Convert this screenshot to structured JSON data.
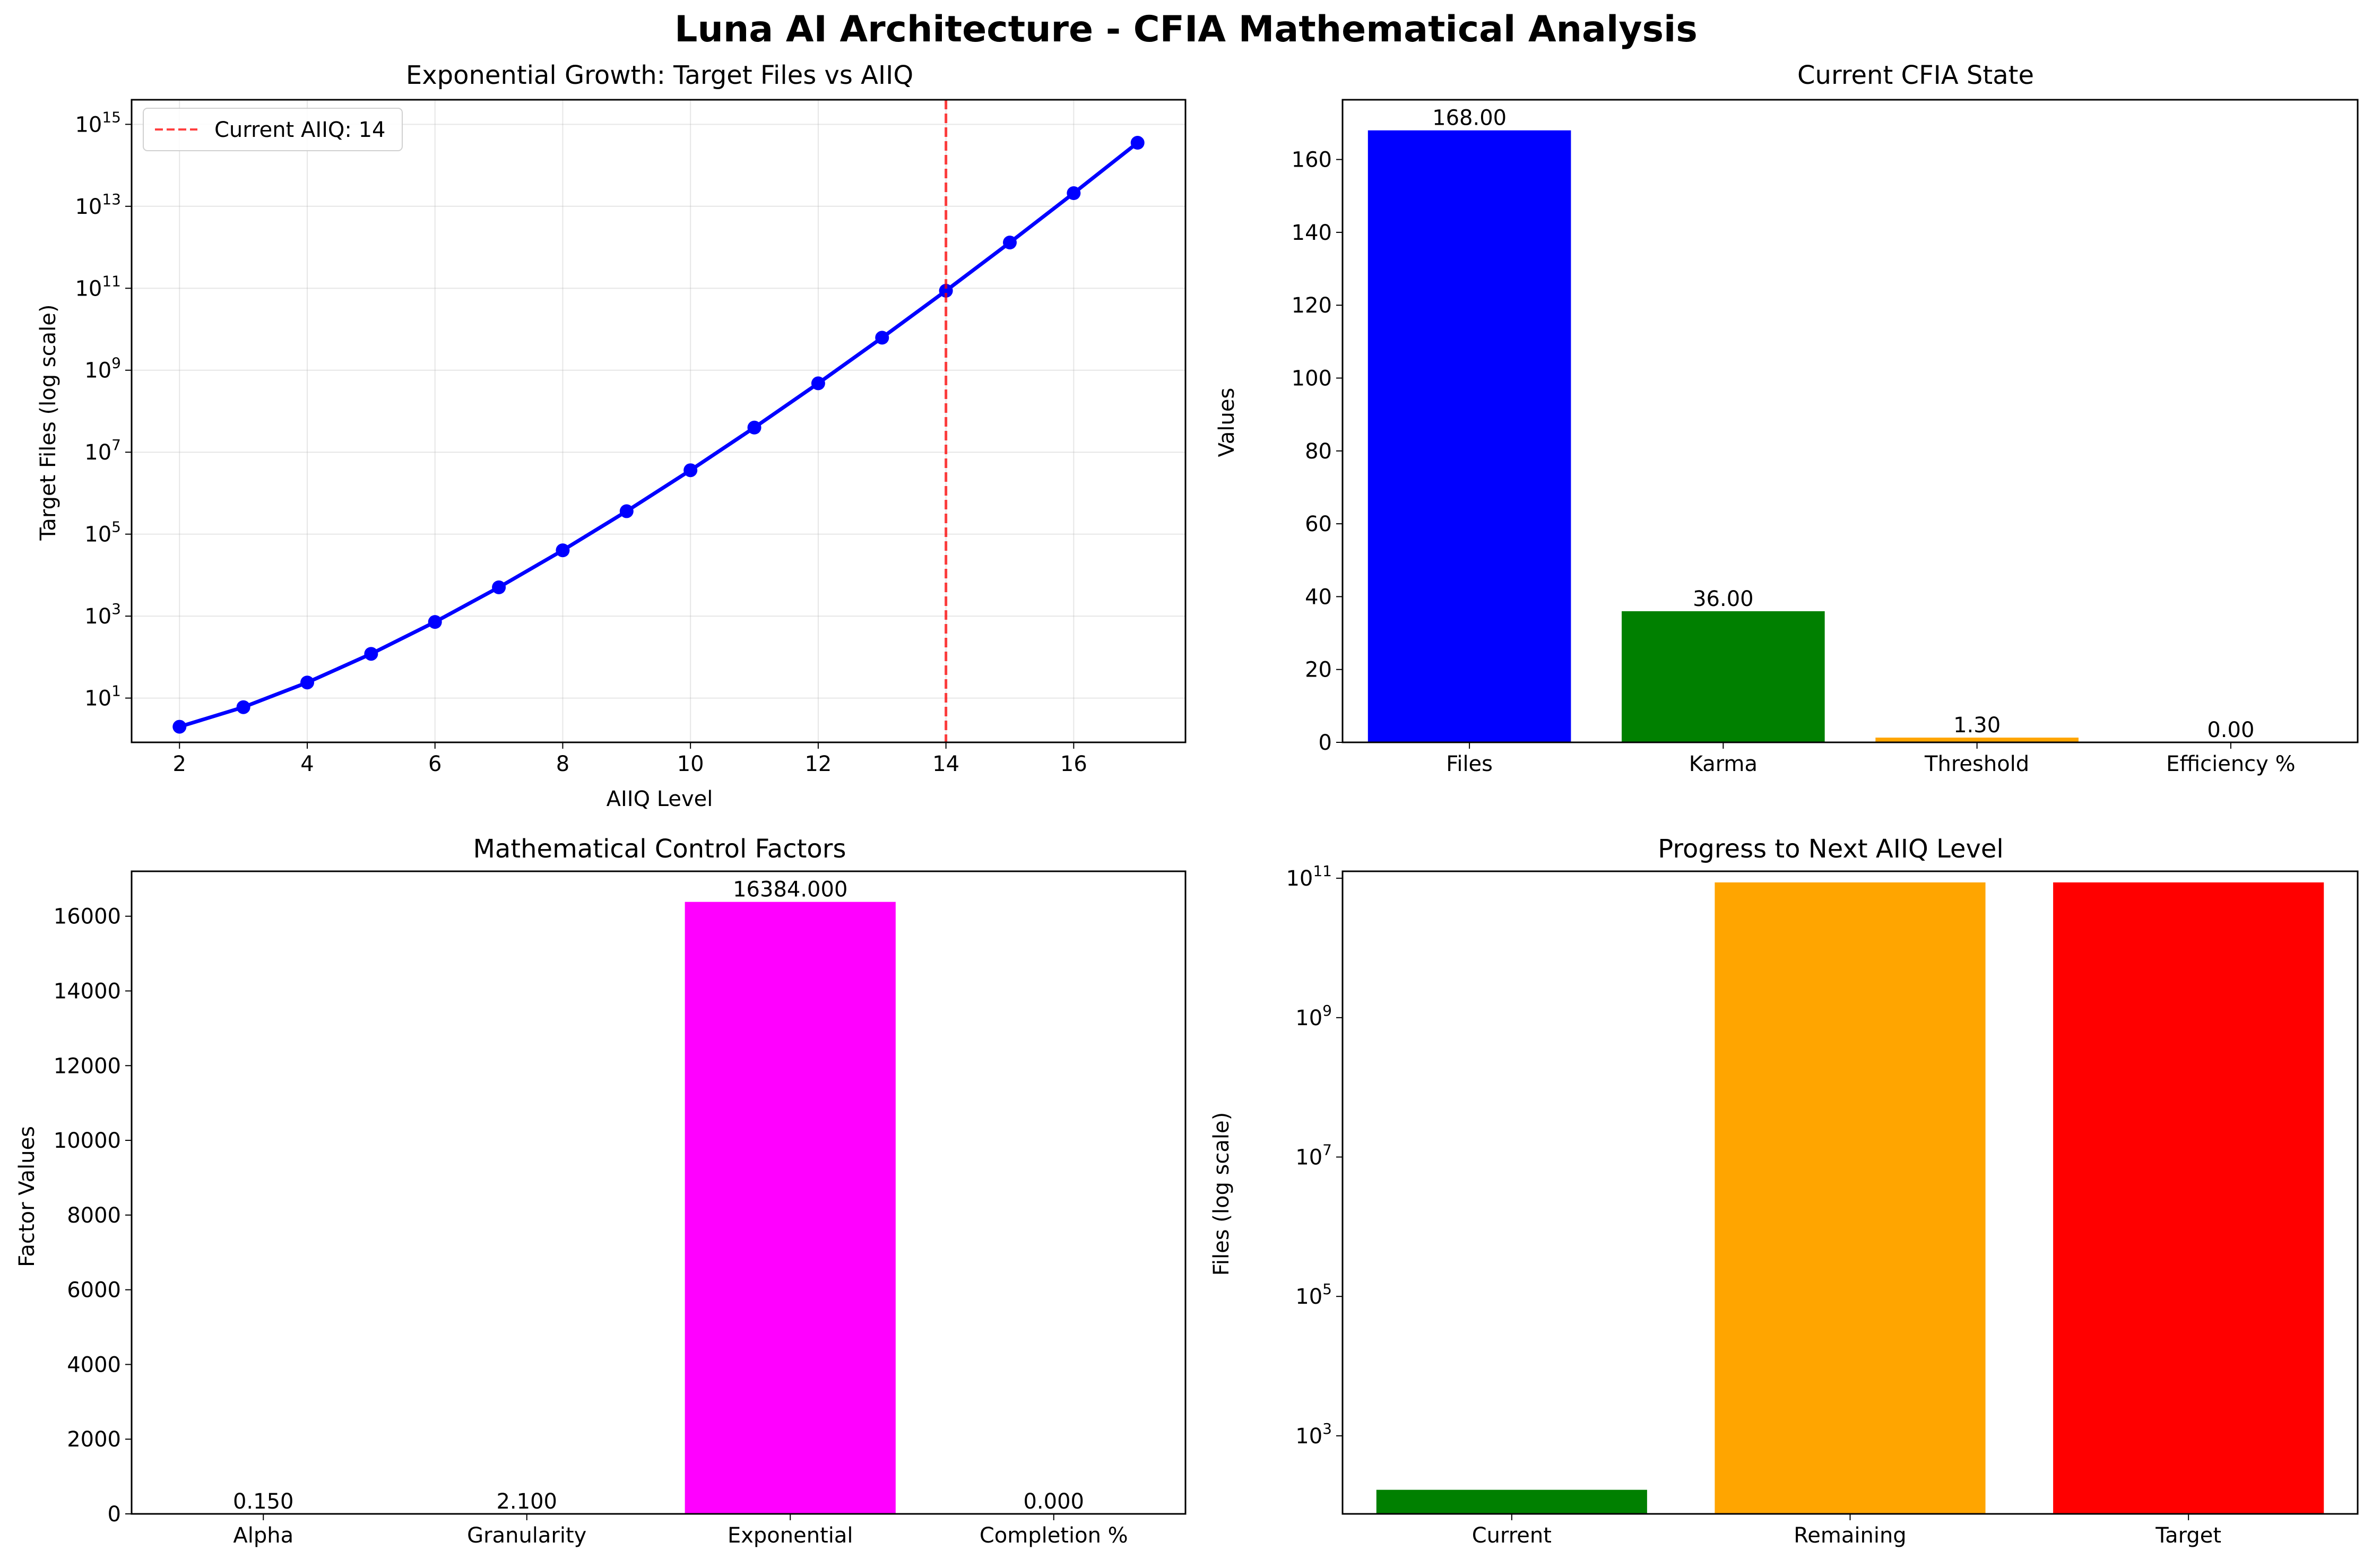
{
  "figure": {
    "title": "Luna AI Architecture - CFIA Mathematical Analysis"
  },
  "chart_data": [
    {
      "type": "line",
      "title": "Exponential Growth: Target Files vs AIIQ",
      "xlabel": "AIIQ Level",
      "ylabel": "Target Files (log scale)",
      "yscale": "log",
      "grid": true,
      "color": "#0000ff",
      "x": [
        2,
        3,
        4,
        5,
        6,
        7,
        8,
        9,
        10,
        11,
        12,
        13,
        14,
        15,
        16,
        17
      ],
      "y": [
        2,
        6,
        24,
        120,
        720,
        5040,
        40320,
        362880,
        3628800,
        39916800,
        479001600,
        6227020800,
        87178291200,
        1307674368000,
        20922789888000,
        355687428096000
      ],
      "xticks": [
        2,
        4,
        6,
        8,
        10,
        12,
        14,
        16
      ],
      "yticks_exp": [
        1,
        3,
        5,
        7,
        9,
        11,
        13,
        15
      ],
      "xlim": [
        1.25,
        17.75
      ],
      "ylim_log10": [
        -0.08,
        15.6
      ],
      "vline": {
        "x": 14,
        "label": "Current AIIQ: 14",
        "color": "#ff0000"
      },
      "legend_position": "upper left"
    },
    {
      "type": "bar",
      "title": "Current CFIA State",
      "xlabel": "",
      "ylabel": "Values",
      "categories": [
        "Files",
        "Karma",
        "Threshold",
        "Efficiency %"
      ],
      "values": [
        168,
        36,
        1.3,
        0
      ],
      "value_labels": [
        "168.00",
        "36.00",
        "1.30",
        "0.00"
      ],
      "colors": [
        "#0000ff",
        "#008000",
        "#ffa500",
        "#ff0000"
      ],
      "yticks": [
        0,
        20,
        40,
        60,
        80,
        100,
        120,
        140,
        160
      ],
      "ylim": [
        0,
        176.4
      ]
    },
    {
      "type": "bar",
      "title": "Mathematical Control Factors",
      "xlabel": "",
      "ylabel": "Factor Values",
      "categories": [
        "Alpha",
        "Granularity",
        "Exponential",
        "Completion %"
      ],
      "values": [
        0.15,
        2.1,
        16384,
        0
      ],
      "value_labels": [
        "0.150",
        "2.100",
        "16384.000",
        "0.000"
      ],
      "colors": [
        "#800080",
        "#00ffff",
        "#ff00ff",
        "#ffff00"
      ],
      "yticks": [
        0,
        2000,
        4000,
        6000,
        8000,
        10000,
        12000,
        14000,
        16000
      ],
      "ylim": [
        0,
        17203.2
      ]
    },
    {
      "type": "bar",
      "title": "Progress to Next AIIQ Level",
      "xlabel": "",
      "ylabel": "Files (log scale)",
      "yscale": "log",
      "categories": [
        "Current",
        "Remaining",
        "Target"
      ],
      "values": [
        168,
        87178291032,
        87178291200
      ],
      "colors": [
        "#008000",
        "#ffa500",
        "#ff0000"
      ],
      "yticks_exp": [
        3,
        5,
        7,
        9,
        11
      ],
      "ylim_log10": [
        1.88,
        11.1
      ]
    }
  ]
}
